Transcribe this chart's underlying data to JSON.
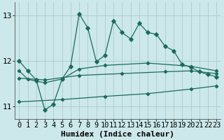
{
  "xlabel": "Humidex (Indice chaleur)",
  "background_color": "#cce8ea",
  "grid_color": "#aacccc",
  "line_color": "#1a6b5a",
  "xlim": [
    -0.5,
    23.5
  ],
  "ylim": [
    10.72,
    13.28
  ],
  "yticks": [
    11,
    12,
    13
  ],
  "xticks": [
    0,
    1,
    2,
    3,
    4,
    5,
    6,
    7,
    8,
    9,
    10,
    11,
    12,
    13,
    14,
    15,
    16,
    17,
    18,
    19,
    20,
    21,
    22,
    23
  ],
  "main_x": [
    0,
    1,
    2,
    3,
    4,
    5,
    6,
    7,
    8,
    9,
    10,
    11,
    12,
    13,
    14,
    15,
    16,
    17,
    18,
    19,
    20,
    21,
    22,
    23
  ],
  "main_y": [
    12.0,
    11.78,
    11.58,
    10.92,
    11.05,
    11.6,
    11.88,
    13.03,
    12.72,
    11.98,
    12.12,
    12.88,
    12.62,
    12.48,
    12.82,
    12.62,
    12.58,
    12.32,
    12.22,
    11.92,
    11.86,
    11.76,
    11.7,
    11.65
  ],
  "line2_x": [
    0,
    1,
    2,
    3,
    5,
    7,
    10,
    15,
    20,
    23
  ],
  "line2_y": [
    11.78,
    11.6,
    11.55,
    11.52,
    11.6,
    11.82,
    11.9,
    11.95,
    11.88,
    11.78
  ],
  "line3_x": [
    0,
    3,
    7,
    12,
    17,
    20,
    23
  ],
  "line3_y": [
    11.62,
    11.58,
    11.68,
    11.72,
    11.76,
    11.78,
    11.72
  ],
  "line4_x": [
    0,
    5,
    10,
    15,
    20,
    23
  ],
  "line4_y": [
    11.1,
    11.15,
    11.22,
    11.28,
    11.38,
    11.45
  ],
  "xlabel_fontsize": 8,
  "tick_fontsize": 7.5
}
